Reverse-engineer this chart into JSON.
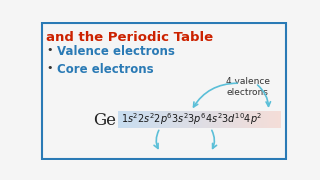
{
  "title_line1": "and the Periodic Table",
  "title_color": "#cc2200",
  "bullet_color": "#2a7ab5",
  "bullet1": "Valence electrons",
  "bullet2": "Core electrons",
  "element": "Ge",
  "element_color": "#222222",
  "valence_label": "4 valence\nelectrons",
  "bg_color": "#f5f5f5",
  "border_color": "#2a7ab5",
  "highlight_color_left": "#c8ddf0",
  "highlight_color_right": "#f5ddd8",
  "arrow_color": "#5bbfd8",
  "formula_color": "#1a1a1a",
  "valence_text_color": "#333333",
  "formula_math": "$1s^22s^22p^63s^23p^64s^23d^{10}4p^2$"
}
